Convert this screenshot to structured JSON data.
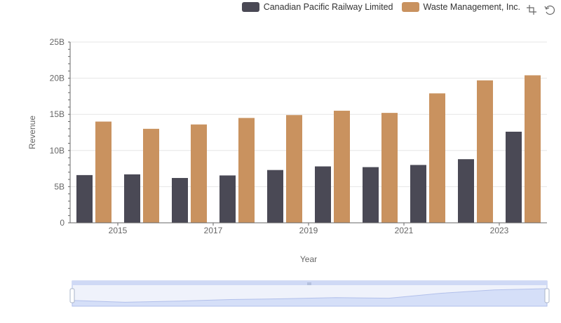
{
  "colors": {
    "series0": "#4a4955",
    "series1": "#c9925f",
    "axis": "#666666",
    "grid": "#e6e6e6",
    "zoom_fill": "#dde6fb",
    "zoom_border": "#aebdea"
  },
  "icons": {
    "zoom": "zoom-area-icon",
    "restore": "restore-icon",
    "zoom_handle": "zoom-handle-icon"
  },
  "chart_data": {
    "type": "bar",
    "xlabel": "Year",
    "ylabel": "Revenue",
    "ylim": [
      0,
      25000000000
    ],
    "yticks": [
      {
        "value": 0,
        "label": "0"
      },
      {
        "value": 5000000000,
        "label": "5B"
      },
      {
        "value": 10000000000,
        "label": "10B"
      },
      {
        "value": 15000000000,
        "label": "15B"
      },
      {
        "value": 20000000000,
        "label": "20B"
      },
      {
        "value": 25000000000,
        "label": "25B"
      }
    ],
    "categories": [
      "2014",
      "2015",
      "2016",
      "2017",
      "2018",
      "2019",
      "2020",
      "2021",
      "2022",
      "2023"
    ],
    "xtick_labels": [
      "2015",
      "2017",
      "2019",
      "2021",
      "2023"
    ],
    "grid": true,
    "legend_position": "top-right",
    "series": [
      {
        "name": "Canadian Pacific Railway Limited",
        "values": [
          6600000000,
          6700000000,
          6200000000,
          6550000000,
          7300000000,
          7800000000,
          7700000000,
          8000000000,
          8800000000,
          12600000000
        ]
      },
      {
        "name": "Waste Management, Inc.",
        "values": [
          14000000000,
          13000000000,
          13600000000,
          14500000000,
          14900000000,
          15500000000,
          15200000000,
          17900000000,
          19700000000,
          20400000000
        ]
      }
    ]
  }
}
